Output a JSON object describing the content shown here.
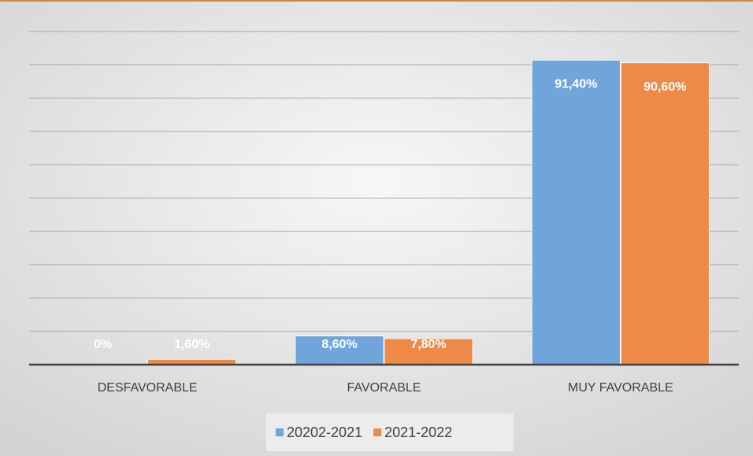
{
  "chart_data": {
    "type": "bar",
    "categories": [
      "DESFAVORABLE",
      "FAVORABLE",
      "MUY FAVORABLE"
    ],
    "series": [
      {
        "name": "20202-2021",
        "color": "#6fa5db",
        "values": [
          0,
          8.6,
          91.4
        ],
        "value_labels": [
          "0%",
          "8,60%",
          "91,40%"
        ]
      },
      {
        "name": "2021-2022",
        "color": "#ee8a47",
        "values": [
          1.6,
          7.8,
          90.6
        ],
        "value_labels": [
          "1,60%",
          "7,80%",
          "90,60%"
        ]
      }
    ],
    "ylim": [
      0,
      100
    ],
    "yticks": [
      0,
      10,
      20,
      30,
      40,
      50,
      60,
      70,
      80,
      90,
      100
    ],
    "grid": true
  }
}
